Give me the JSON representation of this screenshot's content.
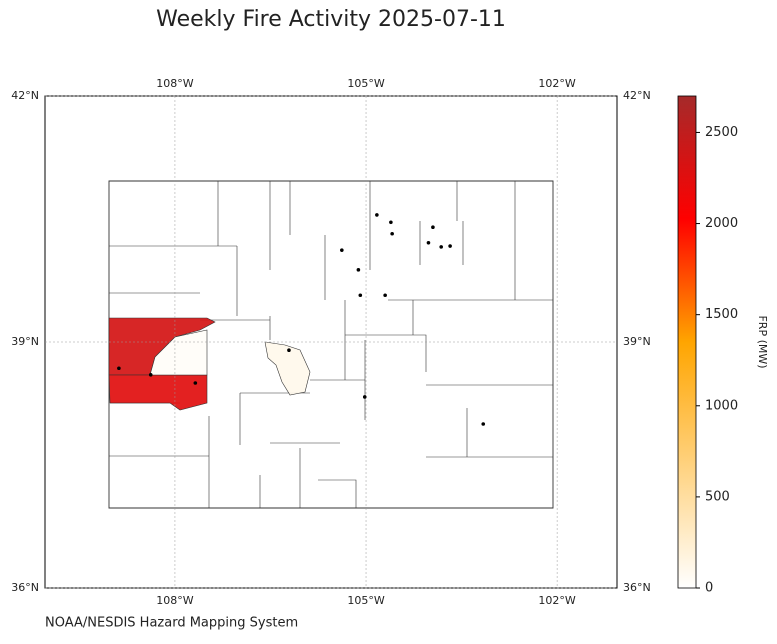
{
  "chart_data": {
    "type": "map",
    "title": "Weekly Fire Activity 2025-07-11",
    "source": "NOAA/NESDIS Hazard Mapping System",
    "xlim": [
      -110.04,
      -101.06
    ],
    "ylim": [
      36,
      42
    ],
    "xticks": [
      {
        "value": -108,
        "label": "108°W"
      },
      {
        "value": -105,
        "label": "105°W"
      },
      {
        "value": -102,
        "label": "102°W"
      }
    ],
    "yticks": [
      {
        "value": 36,
        "label": "36°N"
      },
      {
        "value": 39,
        "label": "39°N"
      },
      {
        "value": 42,
        "label": "42°N"
      }
    ],
    "grid": true,
    "regions": {
      "values": [
        2350,
        2250,
        100,
        30
      ]
    },
    "fires": {
      "lon": [
        -108.88,
        -108.38,
        -107.68,
        -106.21,
        -104.83,
        -104.61,
        -104.59,
        -105.38,
        -103.95,
        -104.02,
        -103.82,
        -103.68,
        -105.12,
        -105.09,
        -104.7,
        -105.02,
        -103.16
      ],
      "lat": [
        38.68,
        38.6,
        38.5,
        38.9,
        40.55,
        40.46,
        40.32,
        40.12,
        40.4,
        40.21,
        40.16,
        40.17,
        39.88,
        39.57,
        39.57,
        38.33,
        38.0
      ],
      "color": "#000000"
    },
    "colorbar": {
      "label": "FRP (MW)",
      "ylim": [
        0,
        2700
      ],
      "yticks": [
        0,
        500,
        1000,
        1500,
        2000,
        2500
      ],
      "colormap": [
        "#ffffff",
        "#ffd27f",
        "#ffa500",
        "#ff0000",
        "#a52a2a"
      ]
    }
  }
}
